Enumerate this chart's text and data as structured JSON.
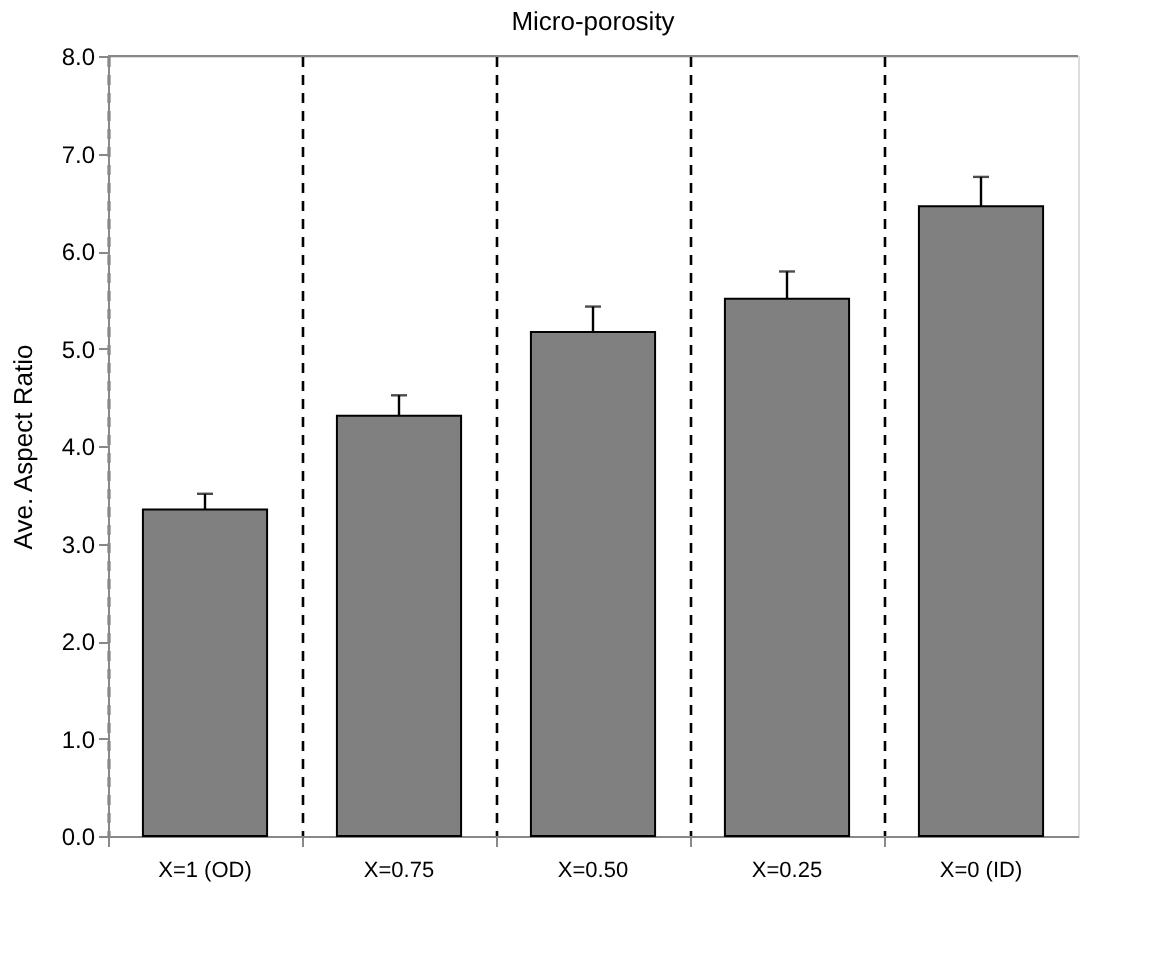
{
  "chart_data": {
    "type": "bar",
    "title": "Micro-porosity",
    "ylabel": "Ave. Aspect Ratio",
    "categories": [
      "X=1 (OD)",
      "X=0.75",
      "X=0.50",
      "X=0.25",
      "X=0 (ID)"
    ],
    "values": [
      3.35,
      4.31,
      5.17,
      5.51,
      6.46
    ],
    "errors": [
      [
        3.35,
        3.51
      ],
      [
        4.31,
        4.52
      ],
      [
        5.17,
        5.43
      ],
      [
        5.51,
        5.79
      ],
      [
        6.46,
        6.76
      ]
    ],
    "color": "#808080",
    "ylim": [
      0,
      8
    ],
    "yticks": [
      {
        "value": 0,
        "label": "0.0"
      },
      {
        "value": 1,
        "label": "1.0"
      },
      {
        "value": 2,
        "label": "2.0"
      },
      {
        "value": 3,
        "label": "3.0"
      },
      {
        "value": 4,
        "label": "4.0"
      },
      {
        "value": 5,
        "label": "5.0"
      },
      {
        "value": 6,
        "label": "6.0"
      },
      {
        "value": 7,
        "label": "7.0"
      },
      {
        "value": 8,
        "label": "8.0"
      }
    ],
    "grid": "x"
  }
}
